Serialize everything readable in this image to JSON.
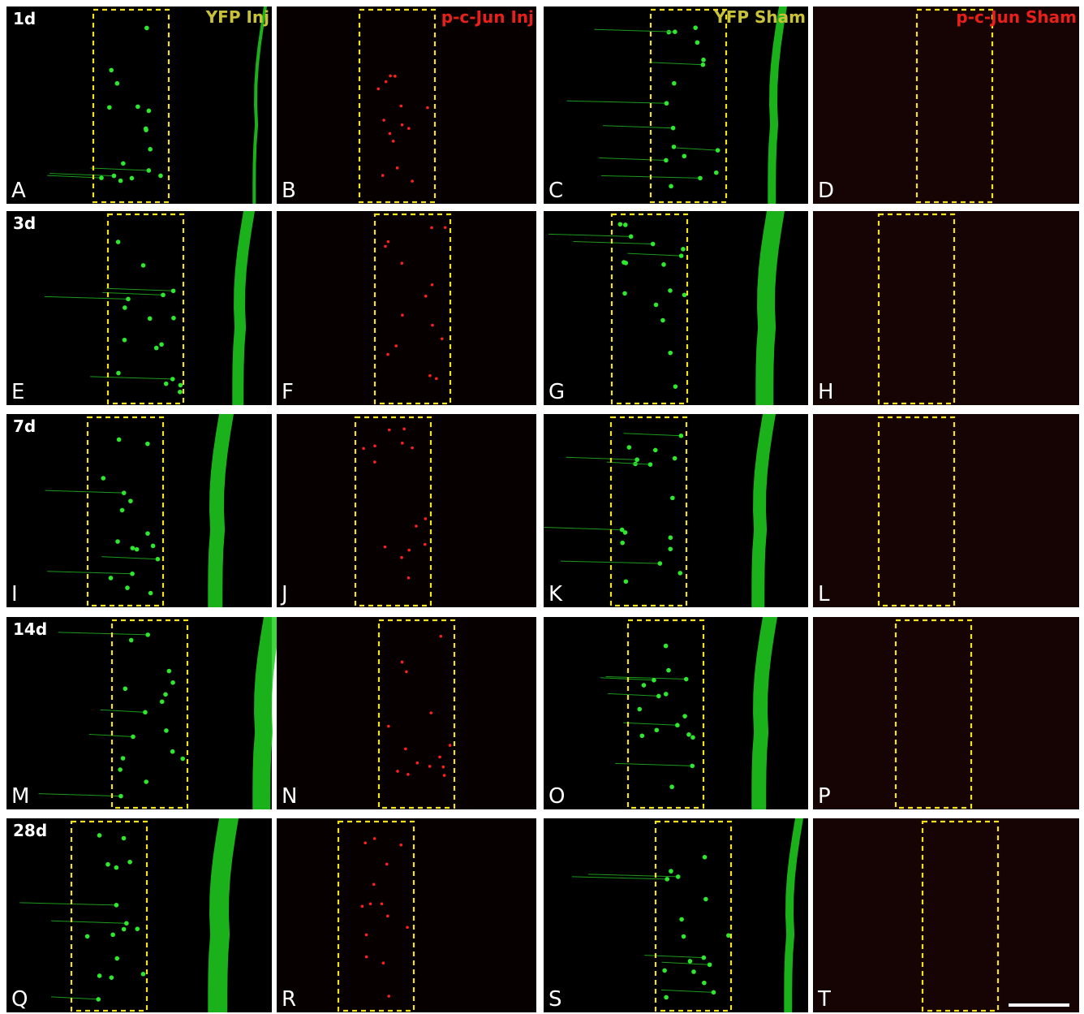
{
  "columns": [
    "YFP Inj",
    "p-c-Jun Inj",
    "YFP Sham",
    "p-c-Jun Sham"
  ],
  "rows": [
    {
      "label": "1d",
      "panels": [
        "A",
        "B",
        "C",
        "D"
      ]
    },
    {
      "label": "3d",
      "panels": [
        "E",
        "F",
        "G",
        "H"
      ]
    },
    {
      "label": "7d",
      "panels": [
        "I",
        "J",
        "K",
        "L"
      ]
    },
    {
      "label": "14d",
      "panels": [
        "M",
        "N",
        "O",
        "P"
      ]
    },
    {
      "label": "28d",
      "panels": [
        "Q",
        "R",
        "S",
        "T"
      ]
    }
  ]
}
